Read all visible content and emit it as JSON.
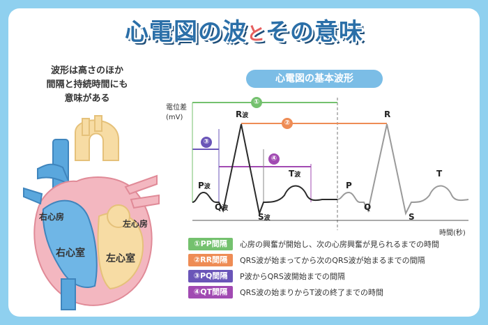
{
  "title": {
    "main": "心電図の波",
    "particle": "と",
    "rest": "その意味"
  },
  "lead": [
    "波形は高さのほか",
    "間隔と持続時間にも",
    "意味がある"
  ],
  "heart": {
    "right_atrium": "右心房",
    "left_atrium": "左心房",
    "right_ventricle": "右心室",
    "left_ventricle": "左心室"
  },
  "ecg": {
    "heading": "心電図の基本波形",
    "y_label": [
      "電位差",
      "(mV)"
    ],
    "x_label": "時間(秒)",
    "waves": {
      "p": "P",
      "q": "Q",
      "r": "R",
      "s": "S",
      "t": "T",
      "suffix": "波"
    },
    "markers": [
      "①",
      "②",
      "③",
      "④"
    ]
  },
  "legend": [
    {
      "tag": "①PP間隔",
      "desc": "心房の興奮が開始し、次の心房興奮が見られるまでの時間",
      "color": "#74c16e"
    },
    {
      "tag": "②RR間隔",
      "desc": "QRS波が始まってから次のQRS波が始まるまでの間隔",
      "color": "#ee8c55"
    },
    {
      "tag": "③PQ間隔",
      "desc": "P波からQRS波開始までの間隔",
      "color": "#6a55b8"
    },
    {
      "tag": "④QT間隔",
      "desc": "QRS波の始まりからT波の終了までの時間",
      "color": "#a14ab2"
    }
  ],
  "colors": {
    "background": "#8fd0ef",
    "title": "#2b6fa8",
    "heading_pill": "#7bbde6"
  }
}
